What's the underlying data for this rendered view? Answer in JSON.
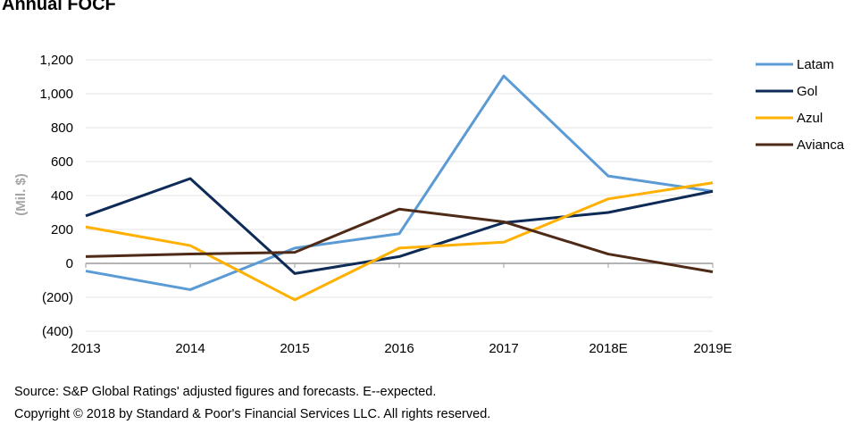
{
  "chart_data": {
    "type": "line",
    "title": "Annual FOCF",
    "xlabel": "",
    "ylabel": "(Mil. $)",
    "categories": [
      "2013",
      "2014",
      "2015",
      "2016",
      "2017",
      "2018E",
      "2019E"
    ],
    "ylim": [
      -400,
      1200
    ],
    "yticks": [
      -400,
      -200,
      0,
      200,
      400,
      600,
      800,
      1000,
      1200
    ],
    "ytick_labels": [
      "(400)",
      "(200)",
      "0",
      "200",
      "400",
      "600",
      "800",
      "1,000",
      "1,200"
    ],
    "grid": true,
    "legend_position": "right",
    "series": [
      {
        "name": "Latam",
        "color": "#5b9bd5",
        "values": [
          -45,
          -155,
          90,
          175,
          1105,
          515,
          425
        ]
      },
      {
        "name": "Gol",
        "color": "#0d2b56",
        "values": [
          280,
          500,
          -60,
          40,
          240,
          300,
          425
        ]
      },
      {
        "name": "Azul",
        "color": "#ffb000",
        "values": [
          215,
          105,
          -215,
          90,
          125,
          380,
          475
        ]
      },
      {
        "name": "Avianca",
        "color": "#4e2a17",
        "values": [
          40,
          55,
          65,
          320,
          245,
          55,
          -50
        ]
      }
    ]
  },
  "footer": {
    "source": "Source: S&P Global Ratings' adjusted figures and forecasts. E--expected.",
    "copyright": "Copyright © 2018 by Standard & Poor's Financial Services LLC. All rights reserved."
  }
}
